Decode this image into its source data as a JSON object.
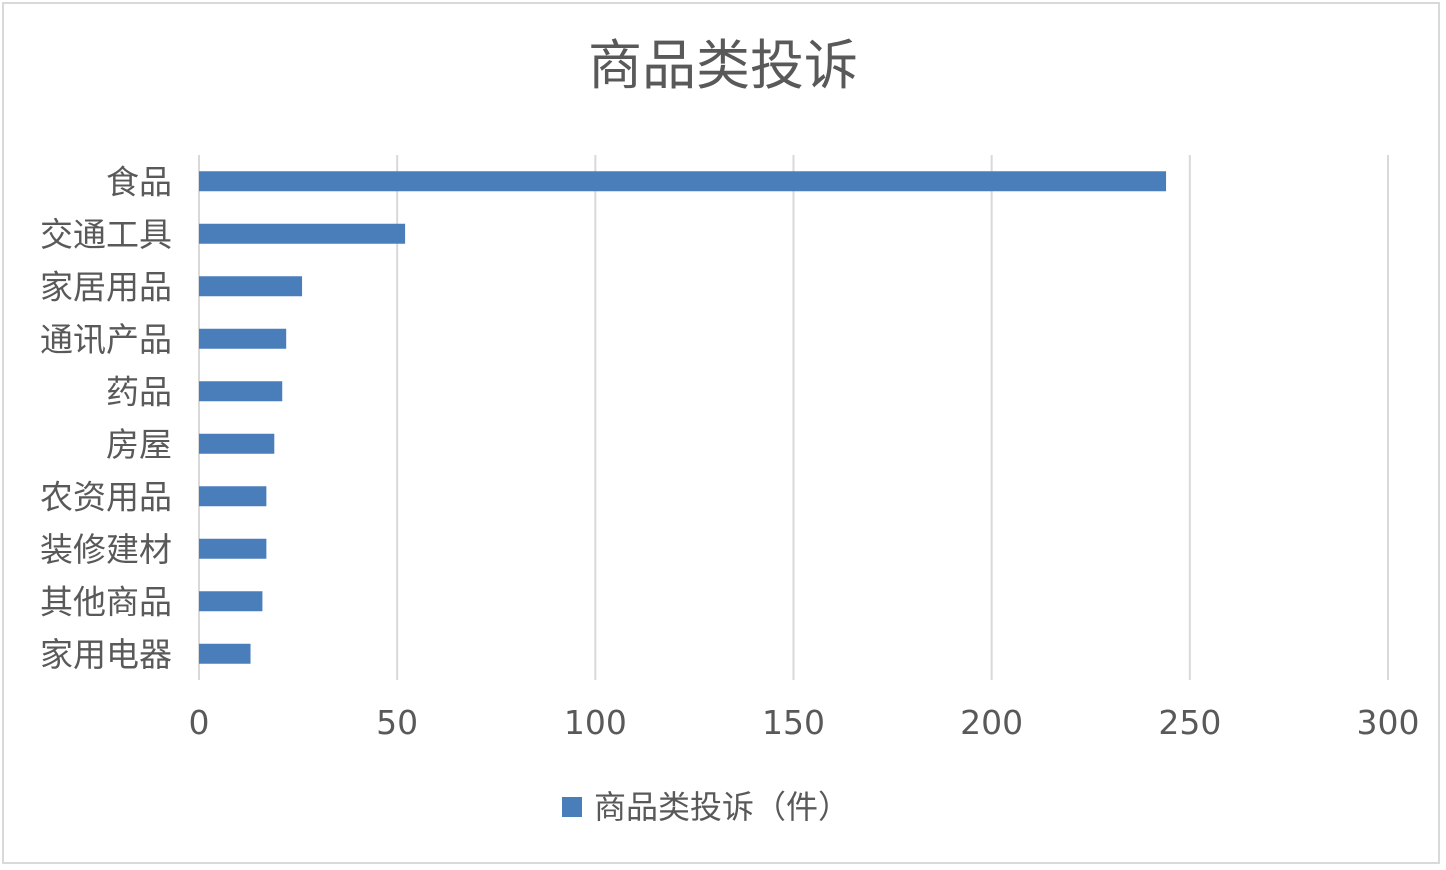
{
  "chart_data": {
    "type": "bar",
    "orientation": "horizontal",
    "title": "商品类投诉",
    "categories": [
      "食品",
      "交通工具",
      "家居用品",
      "通讯产品",
      "药品",
      "房屋",
      "农资用品",
      "装修建材",
      "其他商品",
      "家用电器"
    ],
    "series": [
      {
        "name": "商品类投诉（件）",
        "values": [
          244,
          52,
          26,
          22,
          21,
          19,
          17,
          17,
          16,
          13
        ],
        "color": "#4a7ebb"
      }
    ],
    "xlim": [
      0,
      300
    ],
    "x_ticks": [
      "0",
      "50",
      "100",
      "150",
      "200",
      "250",
      "300"
    ],
    "grid": true,
    "legend_position": "bottom"
  }
}
